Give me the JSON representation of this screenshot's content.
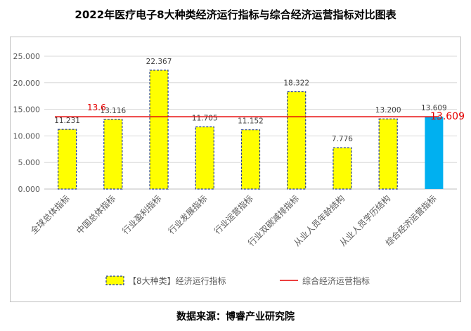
{
  "title": "2022年医疗电子8大种类经济运行指标与综合经济运营指标对比图表",
  "source": "数据来源：博睿产业研究院",
  "chart_data": {
    "type": "bar",
    "title": "2022年医疗电子8大种类经济运行指标与综合经济运营指标对比图表",
    "categories": [
      "全球总体指标",
      "中国总体指标",
      "行业盈利指标",
      "行业发展指标",
      "行业运营指标",
      "行业双碳减排指标",
      "从业人员年龄结构",
      "从业人员学历结构",
      "综合经济运营指标"
    ],
    "series": [
      {
        "name": "【8大种类】经济运行指标",
        "values": [
          11.231,
          13.116,
          22.367,
          11.705,
          11.152,
          18.322,
          7.776,
          13.2,
          13.609
        ],
        "labels": [
          "11.231",
          "13.116",
          "22.367",
          "11.705",
          "11.152",
          "18.322",
          "7.776",
          "13.200",
          "13.609"
        ]
      },
      {
        "name": "综合经济运营指标",
        "type": "line",
        "value": 13.609
      }
    ],
    "ylim": [
      0,
      25
    ],
    "yticks": [
      "0.000",
      "5.000",
      "10.000",
      "15.000",
      "20.000",
      "25.000"
    ],
    "line_label_left": "13.6",
    "line_label_right": "13.609",
    "colors": {
      "bar": "#ffff00",
      "bar_border": "#1f3a93",
      "highlight": "#00b0f0",
      "line": "#e60000",
      "grid": "#d9d9d9"
    },
    "legend": "bottom",
    "grid": true
  }
}
